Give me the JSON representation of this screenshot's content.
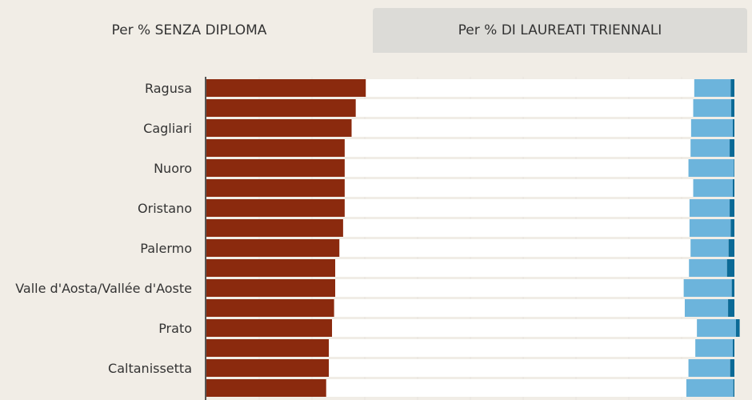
{
  "tabs": {
    "active_label": "Per % SENZA DIPLOMA",
    "inactive_label": "Per % DI LAUREATI TRIENNALI"
  },
  "colors": {
    "no_diploma": "#8b2a0e",
    "mid": "#ffffff",
    "light_blue": "#6cb4dc",
    "dark_blue": "#0b6a96",
    "grid": "#e6e3de",
    "axis": "#555555"
  },
  "chart_data": {
    "type": "bar",
    "stacked": true,
    "orientation": "horizontal",
    "xlim": [
      0,
      100
    ],
    "categories": [
      "Ragusa",
      "",
      "Cagliari",
      "",
      "Nuoro",
      "",
      "Oristano",
      "",
      "Palermo",
      "",
      "Valle d'Aosta/Vallée d'Aoste",
      "",
      "Prato",
      "",
      "Caltanissetta",
      ""
    ],
    "series": [
      {
        "values": [
          30.2,
          28.3,
          27.5,
          26.2,
          26.2,
          26.2,
          26.2,
          25.9,
          25.2,
          24.4,
          24.4,
          24.2,
          23.8,
          23.2,
          23.2,
          22.7
        ]
      },
      {
        "values": [
          62.2,
          63.9,
          64.3,
          65.5,
          65.1,
          66.0,
          65.3,
          65.6,
          66.5,
          67.0,
          66.0,
          66.4,
          69.1,
          69.4,
          68.1,
          68.2
        ]
      },
      {
        "values": [
          6.9,
          7.2,
          7.9,
          7.4,
          8.6,
          7.5,
          7.6,
          7.8,
          7.2,
          7.2,
          9.1,
          8.2,
          7.4,
          7.1,
          7.9,
          8.9
        ]
      },
      {
        "values": [
          0.7,
          0.6,
          0.3,
          0.9,
          0.1,
          0.3,
          0.9,
          0.7,
          1.1,
          1.4,
          0.5,
          1.2,
          0.7,
          0.3,
          0.8,
          0.2
        ]
      }
    ]
  }
}
